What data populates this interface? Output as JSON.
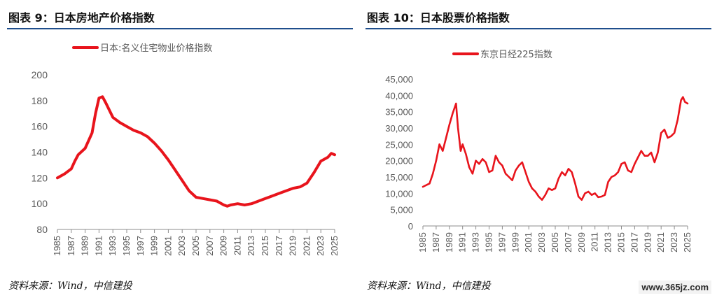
{
  "left": {
    "figure_title": "图表 9：日本房地产价格指数",
    "source": "资料来源：Wind，中信建投"
  },
  "right": {
    "figure_title": "图表 10：日本股票价格指数",
    "source": "资料来源：Wind，中信建投"
  },
  "watermark": "www.365jz.com",
  "chart_data": [
    {
      "type": "line",
      "title": "",
      "xlabel": "",
      "ylabel": "",
      "ylim": [
        80,
        200
      ],
      "yticks": [
        80,
        100,
        120,
        140,
        160,
        180,
        200
      ],
      "xlim": [
        1985,
        2025
      ],
      "xticks": [
        "1985",
        "1987",
        "1989",
        "1991",
        "1993",
        "1995",
        "1997",
        "1999",
        "2001",
        "2003",
        "2005",
        "2007",
        "2009",
        "2011",
        "2013",
        "2015",
        "2017",
        "2019",
        "2021",
        "2023",
        "2025"
      ],
      "legend_position": "top",
      "grid": false,
      "color": "#e8141c",
      "series": [
        {
          "name": "日本:名义住宅物业价格指数",
          "x": [
            1985,
            1986,
            1987,
            1987.5,
            1988,
            1989,
            1990,
            1990.5,
            1991,
            1991.5,
            1992,
            1993,
            1994,
            1995,
            1996,
            1997,
            1998,
            1999,
            2000,
            2001,
            2002,
            2003,
            2004,
            2005,
            2006,
            2007,
            2008,
            2009,
            2009.5,
            2010,
            2011,
            2012,
            2013,
            2014,
            2015,
            2016,
            2017,
            2018,
            2019,
            2020,
            2021,
            2022,
            2023,
            2024,
            2024.5,
            2025
          ],
          "values": [
            120,
            123,
            127,
            133,
            138,
            143,
            155,
            170,
            182,
            183,
            178,
            167,
            163,
            160,
            157,
            155,
            152,
            147,
            141,
            134,
            126,
            118,
            110,
            105,
            104,
            103,
            102,
            99,
            98,
            99,
            100,
            99,
            100,
            102,
            104,
            106,
            108,
            110,
            112,
            113,
            116,
            124,
            133,
            136,
            139,
            138
          ]
        }
      ]
    },
    {
      "type": "line",
      "title": "",
      "xlabel": "",
      "ylabel": "",
      "ylim": [
        0,
        45000
      ],
      "yticks": [
        0,
        5000,
        10000,
        15000,
        20000,
        25000,
        30000,
        35000,
        40000,
        45000
      ],
      "ytick_labels": [
        "0",
        "5,000",
        "10,000",
        "15,000",
        "20,000",
        "25,000",
        "30,000",
        "35,000",
        "40,000",
        "45,000"
      ],
      "xlim": [
        1985,
        2025
      ],
      "xticks": [
        "1985",
        "1987",
        "1989",
        "1991",
        "1993",
        "1995",
        "1997",
        "1999",
        "2001",
        "2003",
        "2005",
        "2007",
        "2009",
        "2011",
        "2013",
        "2015",
        "2017",
        "2019",
        "2021",
        "2023",
        "2025"
      ],
      "legend_position": "top",
      "grid": false,
      "color": "#e8141c",
      "series": [
        {
          "name": "东京日经225指数",
          "x": [
            1985,
            1986,
            1986.5,
            1987,
            1987.5,
            1988,
            1988.5,
            1989,
            1989.5,
            1990,
            1990.3,
            1990.7,
            1991,
            1991.5,
            1992,
            1992.5,
            1993,
            1993.5,
            1994,
            1994.5,
            1995,
            1995.5,
            1996,
            1996.5,
            1997,
            1997.5,
            1998,
            1998.5,
            1999,
            1999.5,
            2000,
            2000.5,
            2001,
            2001.5,
            2002,
            2002.5,
            2003,
            2003.5,
            2004,
            2004.5,
            2005,
            2005.5,
            2006,
            2006.5,
            2007,
            2007.5,
            2008,
            2008.5,
            2009,
            2009.5,
            2010,
            2010.5,
            2011,
            2011.5,
            2012,
            2012.5,
            2013,
            2013.5,
            2014,
            2014.5,
            2015,
            2015.5,
            2016,
            2016.5,
            2017,
            2017.5,
            2018,
            2018.5,
            2019,
            2019.5,
            2020,
            2020.5,
            2021,
            2021.5,
            2022,
            2022.5,
            2023,
            2023.5,
            2024,
            2024.3,
            2024.6,
            2025
          ],
          "values": [
            12000,
            13000,
            16000,
            20000,
            25000,
            23000,
            27000,
            31000,
            34500,
            37500,
            30000,
            23000,
            25000,
            22000,
            18000,
            16000,
            20000,
            19000,
            20500,
            19500,
            16500,
            17000,
            21500,
            19500,
            18500,
            16000,
            15000,
            14000,
            17000,
            18500,
            19500,
            16500,
            13500,
            11500,
            10500,
            9000,
            8000,
            9500,
            11500,
            11000,
            11500,
            14500,
            16500,
            15500,
            17500,
            16500,
            13000,
            9000,
            8000,
            10000,
            10500,
            9500,
            10000,
            8800,
            9000,
            9500,
            13500,
            15000,
            15500,
            16500,
            19000,
            19500,
            17000,
            16500,
            19000,
            21000,
            23000,
            21500,
            21500,
            22500,
            19500,
            22500,
            28500,
            29500,
            27000,
            27500,
            28500,
            32500,
            38500,
            39500,
            38000,
            37500
          ]
        }
      ]
    }
  ]
}
